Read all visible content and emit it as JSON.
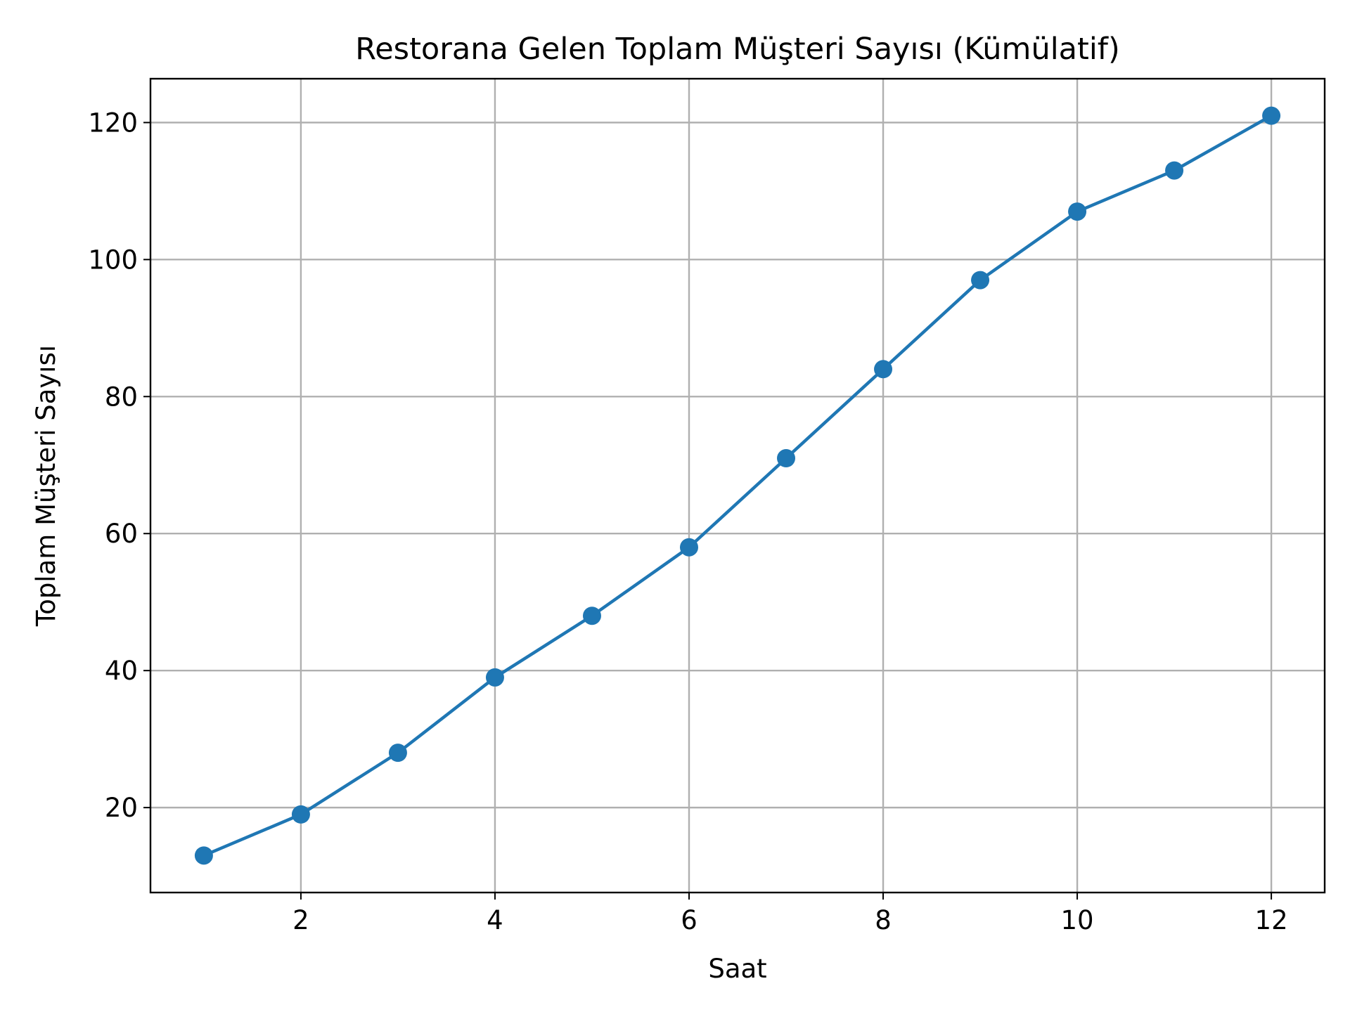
{
  "chart_data": {
    "type": "line",
    "title": "Restorana Gelen Toplam Müşteri Sayısı (Kümülatif)",
    "xlabel": "Saat",
    "ylabel": "Toplam Müşteri Sayısı",
    "x": [
      1,
      2,
      3,
      4,
      5,
      6,
      7,
      8,
      9,
      10,
      11,
      12
    ],
    "series": [
      {
        "values": [
          13,
          19,
          28,
          39,
          48,
          58,
          71,
          84,
          97,
          107,
          113,
          121
        ]
      }
    ],
    "xlim": [
      0.45,
      12.55
    ],
    "ylim": [
      7.6,
      126.4
    ],
    "xticks": [
      2,
      4,
      6,
      8,
      10,
      12
    ],
    "yticks": [
      20,
      40,
      60,
      80,
      100,
      120
    ],
    "grid": true,
    "line_color": "#1f77b4",
    "grid_color": "#b0b0b0",
    "marker": "circle"
  }
}
